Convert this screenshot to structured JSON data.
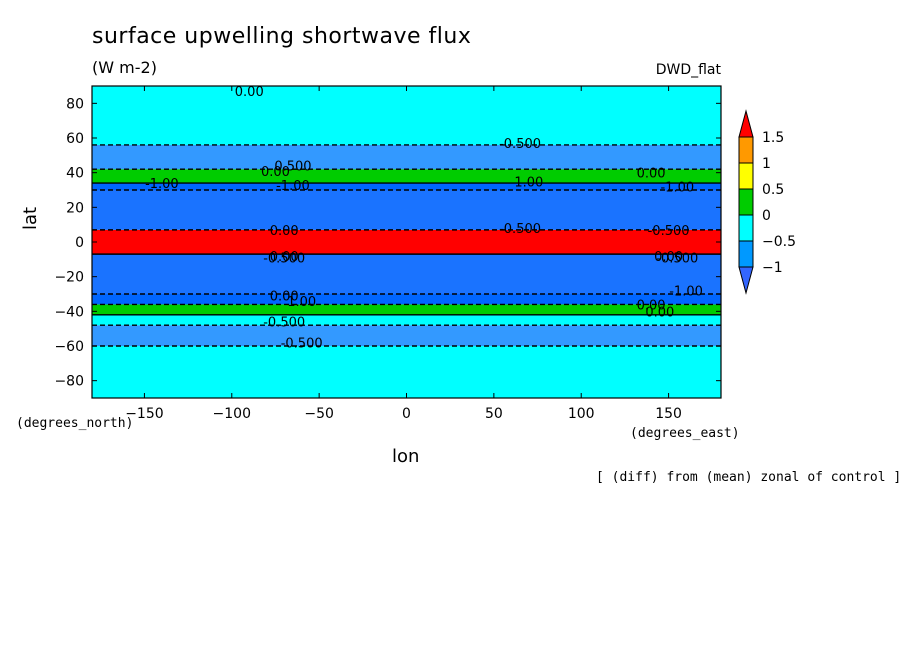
{
  "chart_data": {
    "type": "heatmap",
    "title": "surface upwelling shortwave flux",
    "units": "(W m-2)",
    "model_label": "DWD_flat",
    "xlabel": "lon",
    "ylabel": "lat",
    "xunit": "(degrees_east)",
    "yunit": "(degrees_north)",
    "note": "[ (diff) from (mean) zonal of control ]",
    "xlim": [
      -180,
      180
    ],
    "ylim": [
      -90,
      90
    ],
    "xticks": [
      -150,
      -100,
      -50,
      0,
      50,
      100,
      150
    ],
    "yticks": [
      -80,
      -60,
      -40,
      -20,
      0,
      20,
      40,
      60,
      80
    ],
    "colorbar": {
      "levels": [
        "1.5",
        "1",
        "0.5",
        "0",
        "-0.5",
        "-1"
      ],
      "colors": [
        "#ff0000",
        "#ff9900",
        "#ffff00",
        "#00cc00",
        "#00ffff",
        "#0099ff",
        "#3366ff"
      ]
    },
    "bands": [
      {
        "lat": [
          -90,
          -60
        ],
        "value_class": "-0.5..0",
        "color": "#00ffff"
      },
      {
        "lat": [
          -60,
          -48
        ],
        "value_class": "-1..-0.5",
        "color": "#3399ff"
      },
      {
        "lat": [
          -48,
          -42
        ],
        "value_class": "-0.5..0",
        "color": "#00ffff"
      },
      {
        "lat": [
          -42,
          -36
        ],
        "value_class": "0..1",
        "color": "#00cc00"
      },
      {
        "lat": [
          -36,
          -30
        ],
        "value_class": "<-1",
        "color": "#0066ff"
      },
      {
        "lat": [
          -30,
          -7
        ],
        "value_class": "<-1",
        "color": "#1a73ff"
      },
      {
        "lat": [
          -7,
          7
        ],
        "value_class": ">1.5",
        "color": "#ff0000"
      },
      {
        "lat": [
          7,
          30
        ],
        "value_class": "<-1",
        "color": "#1a73ff"
      },
      {
        "lat": [
          30,
          34
        ],
        "value_class": "<-1",
        "color": "#0066ff"
      },
      {
        "lat": [
          34,
          42
        ],
        "value_class": "0..1",
        "color": "#00cc00"
      },
      {
        "lat": [
          42,
          56
        ],
        "value_class": "-1..-0.5",
        "color": "#3399ff"
      },
      {
        "lat": [
          56,
          90
        ],
        "value_class": "-0.5..0",
        "color": "#00ffff"
      }
    ],
    "contour_labels": [
      {
        "text": "0.00",
        "lon": -90,
        "lat": 87
      },
      {
        "text": "-0.500",
        "lon": 65,
        "lat": 57
      },
      {
        "text": "0.500",
        "lon": -65,
        "lat": 44
      },
      {
        "text": "0.00",
        "lon": -75,
        "lat": 41
      },
      {
        "text": "0.00",
        "lon": 140,
        "lat": 40
      },
      {
        "text": "-1.00",
        "lon": -140,
        "lat": 34
      },
      {
        "text": "-1.00",
        "lon": -65,
        "lat": 33
      },
      {
        "text": "1.00",
        "lon": 70,
        "lat": 35
      },
      {
        "text": "-1.00",
        "lon": 155,
        "lat": 32
      },
      {
        "text": "-0.500",
        "lon": 65,
        "lat": 8
      },
      {
        "text": "0.00",
        "lon": -70,
        "lat": 7
      },
      {
        "text": "-0.500",
        "lon": 150,
        "lat": 7
      },
      {
        "text": "0.00",
        "lon": -70,
        "lat": -8
      },
      {
        "text": "-0.500",
        "lon": -70,
        "lat": -9
      },
      {
        "text": "0.00",
        "lon": 150,
        "lat": -8
      },
      {
        "text": "-0.500",
        "lon": 155,
        "lat": -9
      },
      {
        "text": "-1.00",
        "lon": 160,
        "lat": -28
      },
      {
        "text": "0.00",
        "lon": -70,
        "lat": -31
      },
      {
        "text": "1.00",
        "lon": -60,
        "lat": -34
      },
      {
        "text": "0.00",
        "lon": 140,
        "lat": -36
      },
      {
        "text": "-0.500",
        "lon": -70,
        "lat": -46
      },
      {
        "text": "0.00",
        "lon": 145,
        "lat": -40
      },
      {
        "text": "-0.500",
        "lon": -60,
        "lat": -58
      }
    ]
  }
}
